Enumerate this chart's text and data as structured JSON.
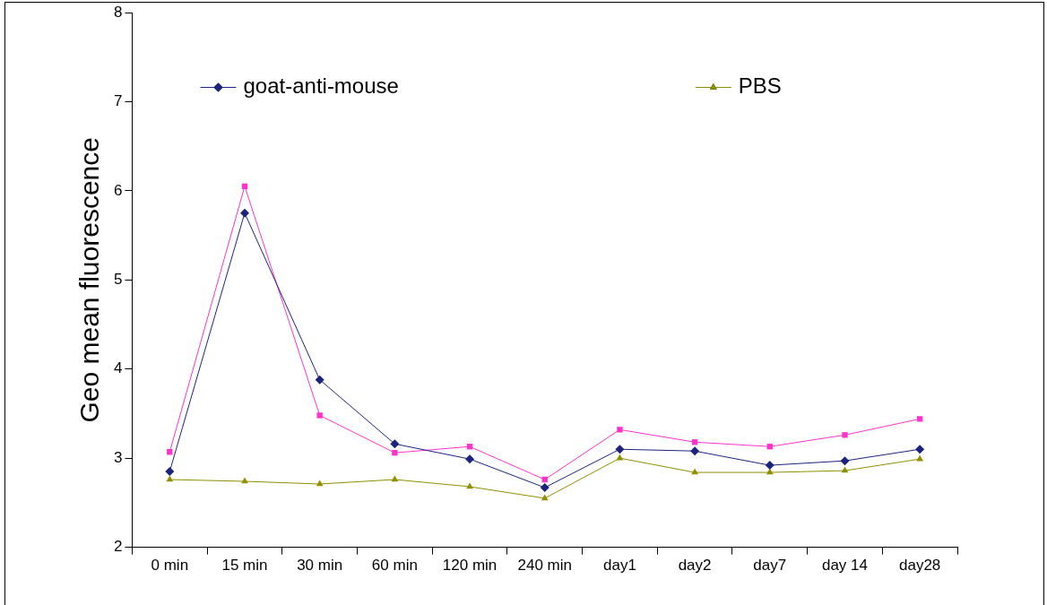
{
  "chart_data": {
    "type": "line",
    "ylabel": "Geo mean fluorescence",
    "categories": [
      "0 min",
      "15 min",
      "30 min",
      "60 min",
      "120 min",
      "240 min",
      "day1",
      "day2",
      "day7",
      "day 14",
      "day28"
    ],
    "series": [
      {
        "name": "goat-anti-mouse",
        "color": "#1a237e",
        "marker": "diamond",
        "values": [
          2.85,
          5.75,
          3.88,
          3.16,
          2.99,
          2.67,
          3.1,
          3.08,
          2.92,
          2.97,
          3.1
        ]
      },
      {
        "color": "#ff33cc",
        "marker": "square",
        "values": [
          3.07,
          6.05,
          3.48,
          3.06,
          3.13,
          2.76,
          3.32,
          3.18,
          3.13,
          3.26,
          3.44
        ]
      },
      {
        "name": "PBS",
        "color": "#8f8f00",
        "marker": "triangle",
        "values": [
          2.76,
          2.74,
          2.71,
          2.76,
          2.68,
          2.55,
          3.0,
          2.84,
          2.84,
          2.86,
          2.99
        ]
      }
    ],
    "ylim": [
      2,
      8
    ],
    "yticks": [
      2,
      3,
      4,
      5,
      6,
      7,
      8
    ],
    "grid": false,
    "legend": "top",
    "line_style": "solid"
  }
}
